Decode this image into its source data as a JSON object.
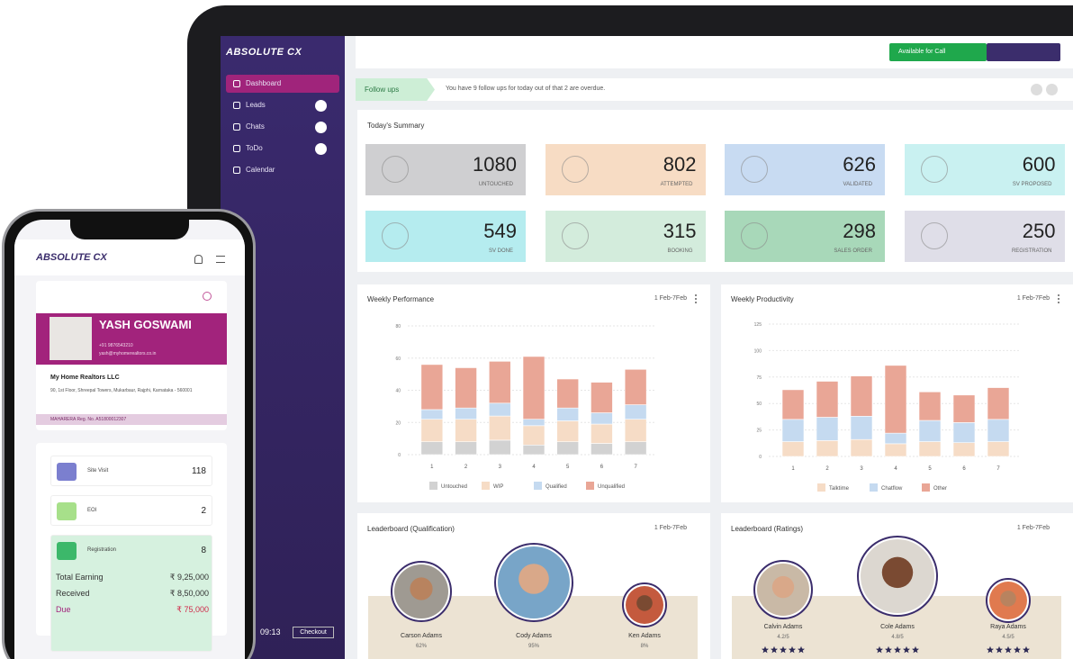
{
  "sidebar": {
    "logo": "ABSOLUTE CX",
    "menu": [
      {
        "label": "Dashboard",
        "active": true
      },
      {
        "label": "Leads",
        "active": false
      },
      {
        "label": "Chats",
        "active": false
      },
      {
        "label": "ToDo",
        "active": false
      },
      {
        "label": "Calendar",
        "active": false
      }
    ],
    "clock": "09:13",
    "checkout": "Checkout"
  },
  "topbar": {
    "status": "Available for Call"
  },
  "followups": {
    "tag": "Follow ups",
    "message": "You have 9 follow ups for today out of that 2 are overdue."
  },
  "summary": {
    "title": "Today's Summary",
    "cards": [
      {
        "value": 1080,
        "label": "UNTOUCHED",
        "color": "#cfcfd1"
      },
      {
        "value": 802,
        "label": "ATTEMPTED",
        "color": "#f7dcc4"
      },
      {
        "value": 626,
        "label": "VALIDATED",
        "color": "#c8dbf2"
      },
      {
        "value": 600,
        "label": "SV PROPOSED",
        "color": "#c9f1f1"
      },
      {
        "value": 549,
        "label": "SV DONE",
        "color": "#b5ecef"
      },
      {
        "value": 315,
        "label": "BOOKING",
        "color": "#d3ecdc"
      },
      {
        "value": 298,
        "label": "SALES ORDER",
        "color": "#a8d8b9"
      },
      {
        "value": 250,
        "label": "REGISTRATION",
        "color": "#dfdee8"
      }
    ]
  },
  "charts": [
    {
      "type": "bar",
      "stacked": true,
      "title": "Weekly Performance",
      "range": "1 Feb-7Feb",
      "categories": [
        "1",
        "2",
        "3",
        "4",
        "5",
        "6",
        "7"
      ],
      "series": [
        {
          "name": "Untouched",
          "color": "#d2d2d2",
          "values": [
            8,
            8,
            9,
            6,
            8,
            7,
            8
          ]
        },
        {
          "name": "WIP",
          "color": "#f6dcc6",
          "values": [
            14,
            14,
            15,
            12,
            13,
            12,
            14
          ]
        },
        {
          "name": "Qualified",
          "color": "#c5daf0",
          "values": [
            6,
            7,
            8,
            4,
            8,
            7,
            9
          ]
        },
        {
          "name": "Unqualified",
          "color": "#e9a696",
          "values": [
            28,
            25,
            26,
            39,
            18,
            19,
            22
          ]
        }
      ],
      "ylim": [
        0,
        80
      ],
      "yticks": [
        0,
        20,
        40,
        60,
        80
      ],
      "grid": true
    },
    {
      "type": "bar",
      "stacked": true,
      "title": "Weekly Productivity",
      "range": "1 Feb-7Feb",
      "categories": [
        "1",
        "2",
        "3",
        "4",
        "5",
        "6",
        "7"
      ],
      "series": [
        {
          "name": "Talktime",
          "color": "#f6dcc6",
          "values": [
            14,
            15,
            16,
            12,
            14,
            13,
            14
          ]
        },
        {
          "name": "Chatflow",
          "color": "#c5daf0",
          "values": [
            21,
            22,
            22,
            10,
            20,
            19,
            21
          ]
        },
        {
          "name": "Other",
          "color": "#e9a696",
          "values": [
            28,
            34,
            38,
            64,
            27,
            26,
            30
          ]
        }
      ],
      "ylim": [
        0,
        125
      ],
      "yticks": [
        0,
        25,
        50,
        75,
        100,
        125
      ],
      "grid": true
    }
  ],
  "leaderboards": [
    {
      "title": "Leaderboard (Qualification)",
      "range": "1 Feb-7Feb",
      "people": [
        {
          "name": "Carson Adams",
          "score": "62%"
        },
        {
          "name": "Cody Adams",
          "score": "95%"
        },
        {
          "name": "Ken Adams",
          "score": "8%"
        }
      ]
    },
    {
      "title": "Leaderboard (Ratings)",
      "range": "1 Feb-7Feb",
      "people": [
        {
          "name": "Calvin Adams",
          "score": "4.2/5"
        },
        {
          "name": "Cole Adams",
          "score": "4.8/5"
        },
        {
          "name": "Raya Adams",
          "score": "4.5/5"
        }
      ]
    }
  ],
  "phone": {
    "logo": "ABSOLUTE CX",
    "name": "YASH GOSWAMI",
    "mobile": "+91 9876543210",
    "email": "yash@myhomerealtors.co.in",
    "company": "My Home Realtors LLC",
    "address": "90, 1st Floor, Shreepal Towers, Mukarbaur, Rajphi, Karnataka - 560001",
    "rera": "MAHARERA Reg. No. A51800012307",
    "stats": [
      {
        "label": "Site Visit",
        "value": 118,
        "color": "#7b7fcf"
      },
      {
        "label": "EOI",
        "value": 2,
        "color": "#a7e08a"
      },
      {
        "label": "Registration",
        "value": 8,
        "color": "#3cb86a"
      }
    ],
    "earnings": [
      {
        "label": "Total Earning",
        "value": "₹ 9,25,000"
      },
      {
        "label": "Received",
        "value": "₹ 8,50,000"
      },
      {
        "label": "Due",
        "value": "₹ 75,000"
      }
    ]
  }
}
